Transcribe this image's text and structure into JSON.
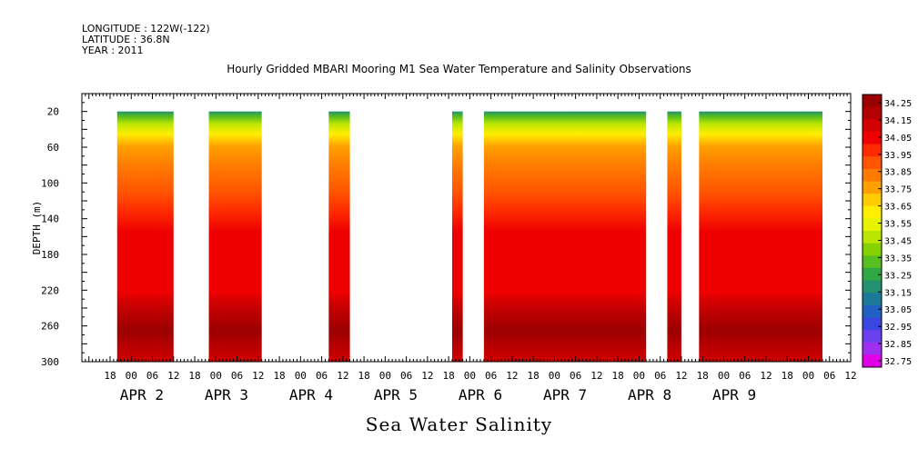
{
  "header": {
    "longitude": "LONGITUDE : 122W(-122)",
    "latitude": "LATITUDE : 36.8N",
    "year": "YEAR : 2011"
  },
  "chart_data": {
    "type": "heatmap",
    "title": "Hourly Gridded MBARI Mooring M1 Sea Water Temperature and Salinity Observations",
    "bottom_title": "Sea Water Salinity",
    "ylabel": "DEPTH (m)",
    "ylim": [
      300,
      0
    ],
    "y_ticks": [
      20,
      60,
      100,
      140,
      180,
      220,
      260,
      300
    ],
    "x_unit": "hours since APR 1 2011 00:00",
    "xlim": [
      10,
      228
    ],
    "hour_ticks": [
      "18",
      "00",
      "06",
      "12",
      "18",
      "00",
      "06",
      "12",
      "18",
      "00",
      "06",
      "12",
      "18",
      "00",
      "06",
      "12",
      "18",
      "00",
      "06",
      "12",
      "18",
      "00",
      "06",
      "12",
      "18",
      "00",
      "06",
      "12",
      "18",
      "00",
      "06",
      "12",
      "18",
      "00",
      "06",
      "12"
    ],
    "day_labels": [
      "APR 2",
      "APR 3",
      "APR 4",
      "APR 5",
      "APR 6",
      "APR 7",
      "APR 8",
      "APR 9"
    ],
    "data_segments": [
      [
        20,
        36
      ],
      [
        46,
        61
      ],
      [
        80,
        86
      ],
      [
        115,
        118
      ],
      [
        124,
        170
      ],
      [
        176,
        180
      ],
      [
        185,
        220
      ]
    ],
    "colorbar": {
      "levels": [
        "34.25",
        "34.15",
        "34.05",
        "33.95",
        "33.85",
        "33.75",
        "33.65",
        "33.55",
        "33.45",
        "33.35",
        "33.25",
        "33.15",
        "33.05",
        "32.95",
        "32.85",
        "32.75"
      ],
      "colors": [
        "#9c0000",
        "#b40000",
        "#d20000",
        "#ee0000",
        "#ff2a00",
        "#ff5500",
        "#ff7a00",
        "#ffa000",
        "#ffcc00",
        "#ffee00",
        "#e6f400",
        "#bce600",
        "#86d200",
        "#56be1e",
        "#2fa844",
        "#239070",
        "#1c7a98",
        "#2060c0",
        "#3a46e0",
        "#6a40f0",
        "#a030f0",
        "#e000e8"
      ]
    }
  }
}
